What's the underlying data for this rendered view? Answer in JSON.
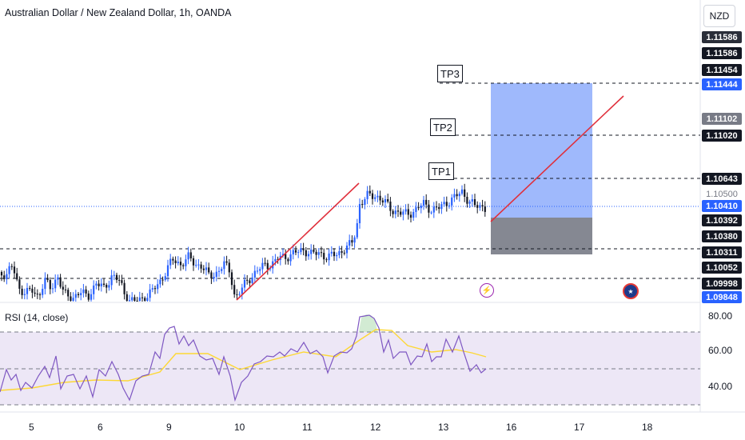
{
  "header": {
    "title": "Australian Dollar / New Zealand Dollar, 1h, OANDA",
    "currency": "NZD"
  },
  "rsi": {
    "title": "RSI (14, close)",
    "levels": [
      "80.00",
      "60.00",
      "40.00"
    ]
  },
  "tp_labels": [
    "TP3",
    "TP2",
    "TP1"
  ],
  "price_labels": [
    {
      "text": "1.11586",
      "bg": "#2a2e39",
      "fg": "#ffffff"
    },
    {
      "text": "1.11586",
      "bg": "#131722",
      "fg": "#ffffff"
    },
    {
      "text": "1.11454",
      "bg": "#131722",
      "fg": "#ffffff"
    },
    {
      "text": "1.11444",
      "bg": "#2962ff",
      "fg": "#ffffff"
    },
    {
      "text": "1.11102",
      "bg": "#787b86",
      "fg": "#ffffff"
    },
    {
      "text": "1.11020",
      "bg": "#131722",
      "fg": "#ffffff"
    },
    {
      "text": "1.10643",
      "bg": "#131722",
      "fg": "#ffffff"
    },
    {
      "text": "1.10500",
      "bg": "#ffffff",
      "fg": "#787b86"
    },
    {
      "text": "1.10410",
      "bg": "#2962ff",
      "fg": "#ffffff"
    },
    {
      "text": "1.10392",
      "bg": "#131722",
      "fg": "#ffffff"
    },
    {
      "text": "1.10380",
      "bg": "#131722",
      "fg": "#ffffff"
    },
    {
      "text": "1.10311",
      "bg": "#131722",
      "fg": "#ffffff"
    },
    {
      "text": "1.10052",
      "bg": "#131722",
      "fg": "#ffffff"
    },
    {
      "text": "1.09998",
      "bg": "#131722",
      "fg": "#ffffff"
    },
    {
      "text": "1.09848",
      "bg": "#2962ff",
      "fg": "#ffffff"
    }
  ],
  "x_axis": [
    "5",
    "6",
    "9",
    "10",
    "11",
    "12",
    "13",
    "16",
    "17",
    "18"
  ],
  "icons": [
    "lightning-icon",
    "globe-flag-icon"
  ],
  "colors": {
    "up": "#2962ff",
    "down": "#131722",
    "target": "#8eadfb",
    "stop": "#787b86",
    "trend": "#e0303c",
    "rsi_line": "#7e57c2",
    "rsi_ma": "#fdd835",
    "rsi_band": "#ede7f6"
  },
  "chart_data": {
    "type": "candlestick",
    "symbol": "AUDNZD",
    "timeframe": "1h",
    "y_unit": "price",
    "x_ticks": [
      "5",
      "6",
      "9",
      "10",
      "11",
      "12",
      "13",
      "16",
      "17",
      "18"
    ],
    "trade": {
      "entry": 1.10392,
      "stop": 1.10052,
      "tp1": 1.10643,
      "tp2": 1.1102,
      "tp3": 1.11444,
      "last_price": 1.1041
    },
    "horizontal_levels": [
      1.11444,
      1.1102,
      1.10643,
      1.10311,
      1.09998
    ],
    "rsi_axis": [
      80,
      60,
      40
    ]
  }
}
